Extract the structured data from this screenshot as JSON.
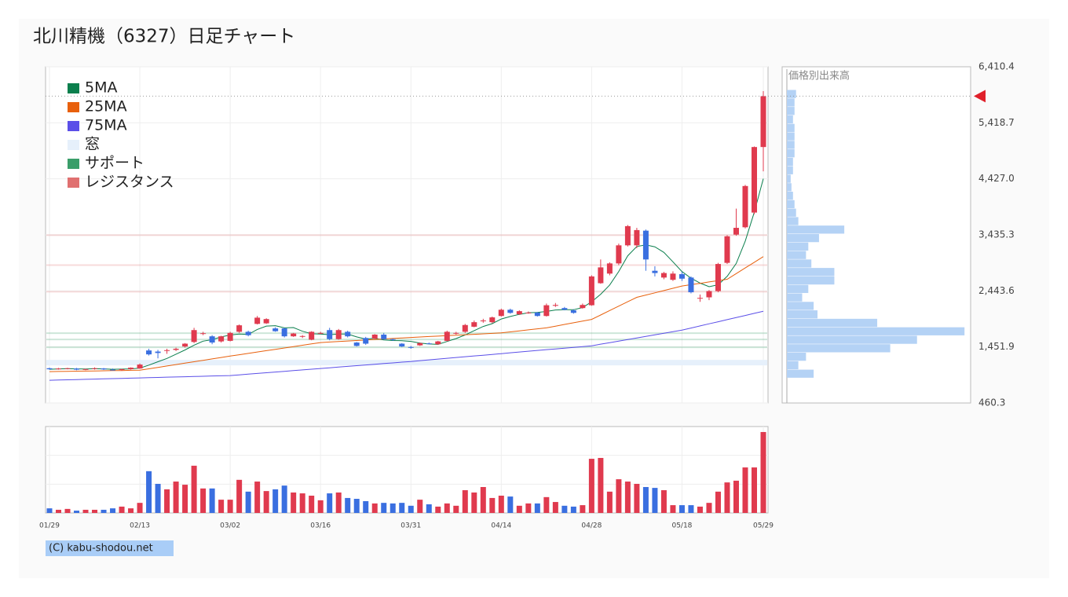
{
  "chart_data": {
    "type": "candlestick",
    "title": "北川精機（6327）日足チャート",
    "copyright": "(C) kabu-shodou.net",
    "categories": [
      "01/29",
      null,
      null,
      null,
      null,
      null,
      null,
      null,
      null,
      null,
      "02/13",
      null,
      null,
      null,
      null,
      null,
      null,
      null,
      null,
      null,
      "03/02",
      null,
      null,
      null,
      null,
      null,
      null,
      null,
      null,
      null,
      "03/16",
      null,
      null,
      null,
      null,
      null,
      null,
      null,
      null,
      null,
      "03/31",
      null,
      null,
      null,
      null,
      null,
      null,
      null,
      null,
      null,
      "04/14",
      null,
      null,
      null,
      null,
      null,
      null,
      null,
      null,
      null,
      "04/28",
      null,
      null,
      null,
      null,
      null,
      null,
      null,
      null,
      null,
      "05/18",
      null,
      null,
      null,
      null,
      null,
      null,
      null,
      null,
      "05/29"
    ],
    "up_color": "#e03a4e",
    "down_color": "#3a6fe0",
    "ohlc": {
      "open": [
        1075,
        1060,
        1068,
        1070,
        1050,
        1062,
        1072,
        1050,
        1045,
        1060,
        1070,
        1390,
        1370,
        1385,
        1400,
        1460,
        1540,
        1690,
        1640,
        1550,
        1560,
        1720,
        1720,
        1860,
        1870,
        1780,
        1780,
        1640,
        1640,
        1580,
        1690,
        1750,
        1590,
        1720,
        1530,
        1610,
        1600,
        1670,
        1590,
        1510,
        1450,
        1480,
        1515,
        1500,
        1560,
        1690,
        1720,
        1810,
        1910,
        1890,
        2000,
        2110,
        2030,
        2050,
        2060,
        2000,
        2180,
        2140,
        2100,
        2140,
        2190,
        2580,
        2750,
        2930,
        3250,
        3250,
        3510,
        2800,
        2680,
        2640,
        2740,
        2680,
        2310,
        2330,
        2440,
        2940,
        3440,
        3570,
        3830,
        4990
      ],
      "high": [
        1085,
        1080,
        1082,
        1080,
        1065,
        1090,
        1080,
        1070,
        1065,
        1090,
        1160,
        1420,
        1400,
        1420,
        1440,
        1520,
        1790,
        1720,
        1660,
        1650,
        1720,
        1850,
        1740,
        2000,
        1960,
        1800,
        1790,
        1700,
        1660,
        1730,
        1720,
        1790,
        1770,
        1740,
        1540,
        1630,
        1680,
        1700,
        1600,
        1520,
        1470,
        1530,
        1530,
        1560,
        1740,
        1720,
        1860,
        1920,
        1950,
        1990,
        2130,
        2130,
        2100,
        2080,
        2070,
        2220,
        2230,
        2160,
        2120,
        2220,
        2720,
        3000,
        2950,
        3280,
        3610,
        3560,
        3530,
        2880,
        2780,
        2790,
        2780,
        2700,
        2380,
        2460,
        2940,
        3430,
        3900,
        4320,
        5000,
        5980
      ],
      "low": [
        1050,
        1050,
        1055,
        1040,
        1040,
        1050,
        1045,
        1035,
        1030,
        1050,
        1065,
        1300,
        1250,
        1330,
        1380,
        1440,
        1520,
        1660,
        1500,
        1530,
        1550,
        1700,
        1640,
        1850,
        1860,
        1720,
        1620,
        1630,
        1610,
        1570,
        1680,
        1570,
        1580,
        1620,
        1460,
        1490,
        1590,
        1580,
        1560,
        1450,
        1420,
        1470,
        1500,
        1490,
        1550,
        1670,
        1700,
        1800,
        1880,
        1870,
        1990,
        2040,
        2020,
        2040,
        1990,
        1990,
        2160,
        2100,
        2040,
        2130,
        2180,
        2570,
        2720,
        2900,
        3230,
        3200,
        2800,
        2700,
        2650,
        2620,
        2620,
        2400,
        2250,
        2280,
        2420,
        2920,
        3420,
        3550,
        3800,
        4560
      ],
      "close": [
        1057,
        1070,
        1075,
        1050,
        1060,
        1075,
        1055,
        1045,
        1058,
        1085,
        1140,
        1320,
        1345,
        1395,
        1420,
        1510,
        1750,
        1695,
        1530,
        1640,
        1700,
        1835,
        1660,
        1970,
        1945,
        1730,
        1640,
        1690,
        1645,
        1720,
        1700,
        1590,
        1750,
        1640,
        1470,
        1510,
        1670,
        1590,
        1585,
        1460,
        1445,
        1520,
        1512,
        1550,
        1720,
        1700,
        1840,
        1890,
        1920,
        1975,
        2110,
        2055,
        2085,
        2060,
        2000,
        2190,
        2195,
        2110,
        2055,
        2195,
        2700,
        2860,
        2930,
        3250,
        3590,
        3520,
        3000,
        2760,
        2760,
        2750,
        2660,
        2420,
        2320,
        2440,
        2920,
        3410,
        3560,
        4300,
        4990,
        5890
      ]
    },
    "series": [
      {
        "name": "5MA",
        "color": "#0b7f4d",
        "values": [
          1057,
          1064,
          1067,
          1063,
          1062,
          1066,
          1063,
          1057,
          1059,
          1064,
          1077,
          1130,
          1190,
          1249,
          1324,
          1398,
          1484,
          1554,
          1581,
          1629,
          1663,
          1680,
          1672,
          1761,
          1822,
          1828,
          1789,
          1795,
          1730,
          1685,
          1679,
          1669,
          1681,
          1680,
          1630,
          1592,
          1606,
          1576,
          1565,
          1563,
          1550,
          1520,
          1504,
          1497,
          1549,
          1600,
          1664,
          1740,
          1814,
          1865,
          1947,
          1991,
          2029,
          2057,
          2062,
          2080,
          2106,
          2111,
          2110,
          2149,
          2251,
          2384,
          2548,
          2787,
          3066,
          3230,
          3258,
          3224,
          3126,
          2958,
          2786,
          2670,
          2582,
          2518,
          2552,
          2702,
          2930,
          3326,
          3836,
          4430
        ]
      },
      {
        "name": "25MA",
        "color": "#e8600c",
        "values": [
          1015,
          1018,
          1020,
          1023,
          1025,
          1028,
          1030,
          1033,
          1035,
          1038,
          1040,
          1065,
          1090,
          1115,
          1140,
          1165,
          1190,
          1215,
          1240,
          1265,
          1290,
          1314,
          1338,
          1362,
          1386,
          1410,
          1434,
          1458,
          1482,
          1506,
          1530,
          1539,
          1548,
          1557,
          1566,
          1575,
          1584,
          1593,
          1602,
          1611,
          1620,
          1628,
          1636,
          1644,
          1652,
          1660,
          1668,
          1676,
          1684,
          1692,
          1700,
          1718,
          1736,
          1754,
          1772,
          1790,
          1820,
          1850,
          1880,
          1910,
          1940,
          2018,
          2096,
          2174,
          2252,
          2330,
          2370,
          2410,
          2450,
          2490,
          2530,
          2554,
          2578,
          2602,
          2626,
          2650,
          2750,
          2850,
          2950,
          3050
        ]
      },
      {
        "name": "75MA",
        "color": "#5b4fe8",
        "values": [
          862,
          866,
          870,
          875,
          879,
          883,
          887,
          891,
          896,
          900,
          904,
          908,
          912,
          917,
          921,
          925,
          929,
          933,
          938,
          942,
          946,
          958,
          971,
          983,
          996,
          1008,
          1021,
          1033,
          1046,
          1058,
          1071,
          1083,
          1095,
          1108,
          1120,
          1133,
          1145,
          1158,
          1170,
          1183,
          1195,
          1209,
          1223,
          1237,
          1251,
          1265,
          1279,
          1293,
          1306,
          1320,
          1334,
          1348,
          1362,
          1376,
          1390,
          1404,
          1417,
          1431,
          1445,
          1459,
          1473,
          1501,
          1528,
          1556,
          1584,
          1612,
          1639,
          1667,
          1695,
          1723,
          1750,
          1787,
          1824,
          1861,
          1898,
          1935,
          1972,
          2009,
          2046,
          2083
        ]
      }
    ],
    "overlays": [
      {
        "name": "窓",
        "color": "#e6f0fb",
        "bands": [
          [
            1126,
            1223
          ]
        ]
      },
      {
        "name": "サポート",
        "color": "#3a9e6a",
        "levels": [
          1445,
          1584,
          1695
        ]
      },
      {
        "name": "レジスタンス",
        "color": "#e07070",
        "levels": [
          2430,
          2900,
          3430
        ]
      }
    ],
    "ylim": [
      460.3,
      6410.4
    ],
    "yticks": [
      460.3,
      {
        "value": 1451.9,
        "label": "1,451.9"
      },
      {
        "value": 2443.6,
        "label": "2,443.6"
      },
      {
        "value": 3435.3,
        "label": "3,435.3"
      },
      {
        "value": 4427.0,
        "label": "4,427.0"
      },
      {
        "value": 5418.7,
        "label": "5,418.7"
      },
      {
        "value": 6410.4,
        "label": "6,410.4"
      }
    ],
    "grid": true,
    "volume": {
      "values": [
        16,
        11,
        14,
        8,
        11,
        11,
        11,
        16,
        22,
        16,
        35,
        145,
        101,
        82,
        109,
        98,
        164,
        85,
        85,
        46,
        46,
        115,
        74,
        109,
        76,
        82,
        95,
        71,
        68,
        60,
        44,
        68,
        71,
        52,
        49,
        41,
        33,
        35,
        33,
        35,
        25,
        46,
        30,
        22,
        33,
        25,
        79,
        71,
        90,
        52,
        60,
        57,
        25,
        33,
        33,
        55,
        38,
        25,
        22,
        27,
        188,
        191,
        74,
        117,
        109,
        101,
        90,
        87,
        79,
        27,
        27,
        27,
        22,
        35,
        74,
        106,
        112,
        158,
        158,
        281
      ],
      "ylim": [
        0,
        300
      ],
      "yticks": [
        100,
        200
      ]
    },
    "profile": {
      "title": "価格別出来高",
      "bins": [
        900,
        1050,
        1200,
        1350,
        1500,
        1650,
        1800,
        1950,
        2100,
        2250,
        2400,
        2550,
        2700,
        2850,
        3000,
        3150,
        3300,
        3450,
        3600,
        3750,
        3900,
        4050,
        4200,
        4350,
        4500,
        4650,
        4800,
        4950,
        5100,
        5250,
        5400,
        5550,
        5700,
        5850,
        6000
      ],
      "values": [
        35,
        15,
        25,
        135,
        170,
        232,
        118,
        40,
        35,
        20,
        28,
        62,
        62,
        32,
        25,
        28,
        42,
        75,
        15,
        12,
        10,
        8,
        6,
        5,
        8,
        8,
        10,
        10,
        10,
        10,
        8,
        10,
        10,
        12
      ],
      "xlim": [
        0,
        240
      ],
      "color": "#b4d2f5"
    }
  }
}
